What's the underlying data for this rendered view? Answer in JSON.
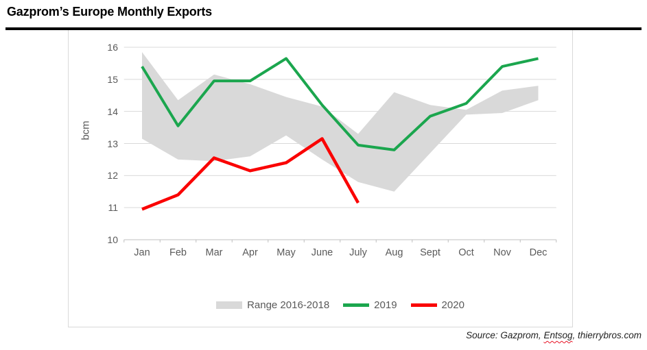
{
  "header": {
    "title": "Gazprom’s Europe Monthly Exports"
  },
  "chart_data": {
    "type": "line",
    "title": "Gazprom’s Europe Monthly Exports",
    "xlabel": "",
    "ylabel": "bcm",
    "ylim": [
      10,
      16
    ],
    "yticks": [
      10,
      11,
      12,
      13,
      14,
      15,
      16
    ],
    "grid": true,
    "legend_position": "bottom",
    "categories": [
      "Jan",
      "Feb",
      "Mar",
      "Apr",
      "May",
      "June",
      "July",
      "Aug",
      "Sept",
      "Oct",
      "Nov",
      "Dec"
    ],
    "series": [
      {
        "name": "Range 2016-2018",
        "type": "band",
        "color": "#d9d9d9",
        "upper": [
          15.85,
          14.35,
          15.15,
          14.85,
          14.45,
          14.15,
          13.3,
          14.6,
          14.2,
          14.05,
          14.65,
          14.8
        ],
        "lower": [
          13.15,
          12.5,
          12.45,
          12.6,
          13.25,
          12.5,
          11.8,
          11.5,
          12.7,
          13.9,
          13.95,
          14.35
        ]
      },
      {
        "name": "2019",
        "type": "line",
        "color": "#1ba64e",
        "values": [
          15.4,
          13.55,
          14.95,
          14.95,
          15.65,
          14.2,
          12.95,
          12.8,
          13.85,
          14.25,
          15.4,
          15.65
        ]
      },
      {
        "name": "2020",
        "type": "line",
        "color": "#fa0000",
        "values": [
          10.95,
          11.4,
          12.55,
          12.15,
          12.4,
          13.15,
          11.15,
          null,
          null,
          null,
          null,
          null
        ]
      }
    ],
    "colors": {
      "grid": "#d9d9d9",
      "axis": "#bfbfbf",
      "tick_label": "#595959"
    }
  },
  "footer": {
    "source_prefix": "Source: Gazprom, ",
    "source_highlight": "Entsog",
    "source_suffix": ", thierrybros.com"
  }
}
